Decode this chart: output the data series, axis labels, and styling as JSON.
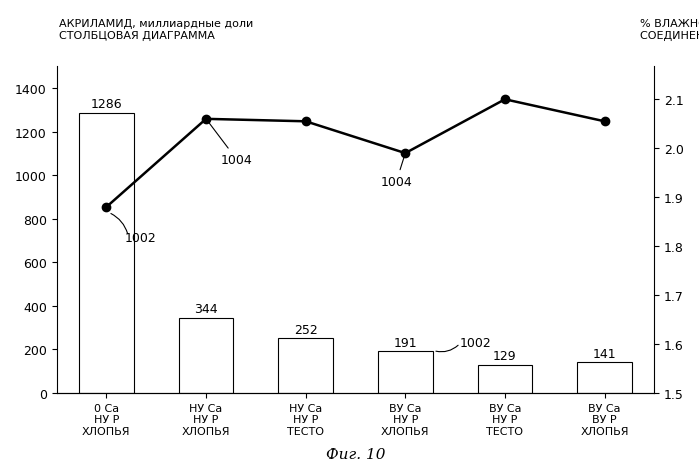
{
  "categories": [
    "0 Ca\nНУ Р\nХЛОПЬЯ",
    "НУ Ca\nНУ Р\nХЛОПЬЯ",
    "НУ Ca\nНУ Р\nТЕСТО",
    "ВУ Ca\nНУ Р\nХЛОПЬЯ",
    "ВУ Ca\nНУ Р\nТЕСТО",
    "ВУ Ca\nВУ Р\nХЛОПЬЯ"
  ],
  "bar_values": [
    1286,
    344,
    252,
    191,
    129,
    141
  ],
  "bar_labels": [
    "1286",
    "344",
    "252",
    "191",
    "129",
    "141"
  ],
  "line_values": [
    1.88,
    2.06,
    2.055,
    1.99,
    2.1,
    2.055
  ],
  "bar_color": "#ffffff",
  "bar_edgecolor": "#000000",
  "line_color": "#000000",
  "line_marker": "o",
  "line_markersize": 6,
  "line_linewidth": 1.8,
  "ylim_left": [
    0,
    1500
  ],
  "ylim_right": [
    1.5,
    2.167
  ],
  "yticks_left": [
    0,
    200,
    400,
    600,
    800,
    1000,
    1200,
    1400
  ],
  "yticks_right": [
    1.5,
    1.6,
    1.7,
    1.8,
    1.9,
    2.0,
    2.1
  ],
  "ylabel_left": "АКРИЛАМИД, миллиардные доли\nСТОЛБЦОВАЯ ДИАГРАММА",
  "ylabel_right": "% ВЛАЖНОСТЬ\nСОЕДИНЕННЫЕ ТОЧКИ",
  "title_bottom": "Фиг. 10",
  "bar_width": 0.55,
  "figsize": [
    6.99,
    4.77
  ],
  "dpi": 100,
  "font_size_labels": 9,
  "font_size_ticks": 9,
  "font_size_xticks": 8,
  "font_size_title": 11
}
